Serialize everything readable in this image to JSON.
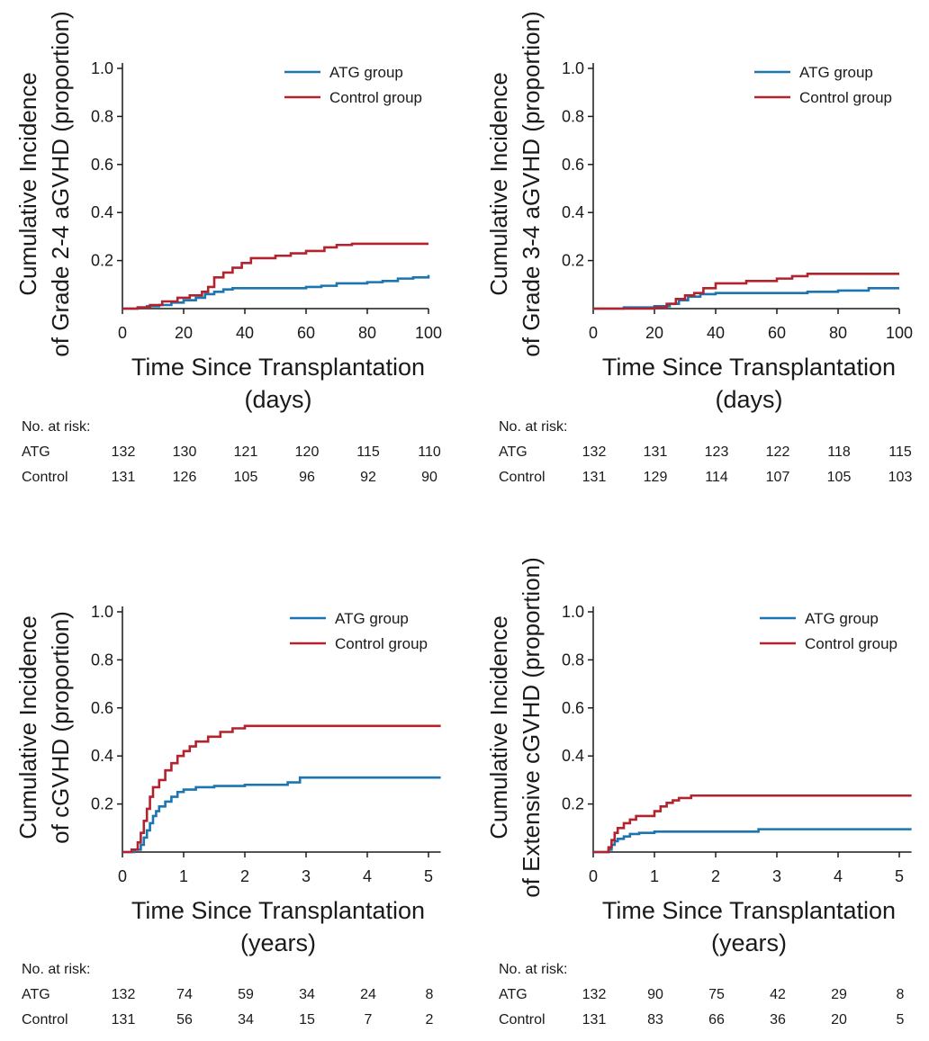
{
  "colors": {
    "atg": "#1b75b0",
    "control": "#b2232e",
    "axis": "#1a1a1a"
  },
  "chart_data": [
    {
      "type": "line",
      "step": true,
      "ylabel": [
        "Cumulative Incidence",
        "of Grade 2-4 aGVHD (proportion)"
      ],
      "xlabel": [
        "Time Since Transplantation",
        "(days)"
      ],
      "xlim": [
        0,
        100
      ],
      "ylim": [
        0,
        1.0
      ],
      "xticks": [
        0,
        20,
        40,
        60,
        80,
        100
      ],
      "xtick_labels": [
        "0",
        "20",
        "40",
        "60",
        "80",
        "100"
      ],
      "yticks": [
        0.2,
        0.4,
        0.6,
        0.8,
        1.0
      ],
      "ytick_labels": [
        "0.2",
        "0.4",
        "0.6",
        "0.8",
        "1.0"
      ],
      "legend": [
        "ATG group",
        "Control group"
      ],
      "series": [
        {
          "name": "ATG group",
          "x": [
            0,
            5,
            8,
            12,
            16,
            20,
            24,
            27,
            30,
            33,
            36,
            42,
            50,
            60,
            65,
            70,
            80,
            85,
            90,
            95,
            100
          ],
          "y": [
            0,
            0.005,
            0.01,
            0.015,
            0.025,
            0.035,
            0.045,
            0.06,
            0.07,
            0.08,
            0.085,
            0.085,
            0.085,
            0.09,
            0.095,
            0.105,
            0.11,
            0.115,
            0.125,
            0.13,
            0.14
          ]
        },
        {
          "name": "Control group",
          "x": [
            0,
            5,
            9,
            13,
            18,
            22,
            26,
            28,
            30,
            33,
            36,
            39,
            42,
            50,
            55,
            60,
            66,
            70,
            75,
            100
          ],
          "y": [
            0,
            0.005,
            0.015,
            0.03,
            0.045,
            0.055,
            0.07,
            0.09,
            0.13,
            0.15,
            0.17,
            0.19,
            0.21,
            0.22,
            0.23,
            0.24,
            0.255,
            0.265,
            0.27,
            0.27
          ]
        }
      ],
      "risk_table": {
        "header": "No. at risk:",
        "rows": [
          {
            "label": "ATG",
            "values": [
              "132",
              "130",
              "121",
              "120",
              "115",
              "110"
            ]
          },
          {
            "label": "Control",
            "values": [
              "131",
              "126",
              "105",
              "96",
              "92",
              "90"
            ]
          }
        ]
      }
    },
    {
      "type": "line",
      "step": true,
      "ylabel": [
        "Cumulative Incidence",
        "of Grade 3-4 aGVHD (proportion)"
      ],
      "xlabel": [
        "Time Since Transplantation",
        "(days)"
      ],
      "xlim": [
        0,
        100
      ],
      "ylim": [
        0,
        1.0
      ],
      "xticks": [
        0,
        20,
        40,
        60,
        80,
        100
      ],
      "xtick_labels": [
        "0",
        "20",
        "40",
        "60",
        "80",
        "100"
      ],
      "yticks": [
        0.2,
        0.4,
        0.6,
        0.8,
        1.0
      ],
      "ytick_labels": [
        "0.2",
        "0.4",
        "0.6",
        "0.8",
        "1.0"
      ],
      "legend": [
        "ATG group",
        "Control group"
      ],
      "series": [
        {
          "name": "ATG group",
          "x": [
            0,
            10,
            20,
            25,
            28,
            31,
            35,
            40,
            60,
            70,
            80,
            90,
            100
          ],
          "y": [
            0,
            0.005,
            0.01,
            0.02,
            0.035,
            0.05,
            0.06,
            0.065,
            0.065,
            0.07,
            0.075,
            0.085,
            0.085
          ]
        },
        {
          "name": "Control group",
          "x": [
            0,
            20,
            24,
            27,
            30,
            33,
            36,
            40,
            50,
            60,
            65,
            70,
            100
          ],
          "y": [
            0,
            0.005,
            0.02,
            0.04,
            0.055,
            0.065,
            0.085,
            0.105,
            0.115,
            0.125,
            0.135,
            0.145,
            0.145
          ]
        }
      ],
      "risk_table": {
        "header": "No. at risk:",
        "rows": [
          {
            "label": "ATG",
            "values": [
              "132",
              "131",
              "123",
              "122",
              "118",
              "115"
            ]
          },
          {
            "label": "Control",
            "values": [
              "131",
              "129",
              "114",
              "107",
              "105",
              "103"
            ]
          }
        ]
      }
    },
    {
      "type": "line",
      "step": true,
      "ylabel": [
        "Cumulative Incidence",
        "of cGVHD (proportion)"
      ],
      "xlabel": [
        "Time Since Transplantation",
        "(years)"
      ],
      "xlim": [
        0,
        5.2
      ],
      "ylim": [
        0,
        1.0
      ],
      "xticks": [
        0,
        1,
        2,
        3,
        4,
        5
      ],
      "xtick_labels": [
        "0",
        "1",
        "2",
        "3",
        "4",
        "5"
      ],
      "yticks": [
        0.2,
        0.4,
        0.6,
        0.8,
        1.0
      ],
      "ytick_labels": [
        "0.2",
        "0.4",
        "0.6",
        "0.8",
        "1.0"
      ],
      "legend": [
        "ATG group",
        "Control group"
      ],
      "series": [
        {
          "name": "ATG group",
          "x": [
            0,
            0.2,
            0.3,
            0.35,
            0.4,
            0.45,
            0.5,
            0.55,
            0.6,
            0.7,
            0.8,
            0.9,
            1.0,
            1.2,
            1.5,
            2.0,
            2.7,
            2.9,
            5.2
          ],
          "y": [
            0,
            0.01,
            0.03,
            0.06,
            0.09,
            0.12,
            0.15,
            0.17,
            0.19,
            0.21,
            0.23,
            0.25,
            0.26,
            0.27,
            0.275,
            0.28,
            0.29,
            0.31,
            0.31
          ]
        },
        {
          "name": "Control group",
          "x": [
            0,
            0.15,
            0.25,
            0.3,
            0.35,
            0.4,
            0.45,
            0.5,
            0.6,
            0.7,
            0.8,
            0.9,
            1.0,
            1.1,
            1.2,
            1.4,
            1.6,
            1.8,
            2.0,
            5.2
          ],
          "y": [
            0,
            0.01,
            0.04,
            0.08,
            0.13,
            0.18,
            0.23,
            0.27,
            0.3,
            0.34,
            0.37,
            0.4,
            0.42,
            0.44,
            0.46,
            0.48,
            0.5,
            0.515,
            0.525,
            0.525
          ]
        }
      ],
      "risk_table": {
        "header": "No. at risk:",
        "rows": [
          {
            "label": "ATG",
            "values": [
              "132",
              "74",
              "59",
              "34",
              "24",
              "8"
            ]
          },
          {
            "label": "Control",
            "values": [
              "131",
              "56",
              "34",
              "15",
              "7",
              "2"
            ]
          }
        ]
      }
    },
    {
      "type": "line",
      "step": true,
      "ylabel": [
        "Cumulative Incidence",
        "of Extensive cGVHD (proportion)"
      ],
      "xlabel": [
        "Time Since Transplantation",
        "(years)"
      ],
      "xlim": [
        0,
        5.2
      ],
      "ylim": [
        0,
        1.0
      ],
      "xticks": [
        0,
        1,
        2,
        3,
        4,
        5
      ],
      "xtick_labels": [
        "0",
        "1",
        "2",
        "3",
        "4",
        "5"
      ],
      "yticks": [
        0.2,
        0.4,
        0.6,
        0.8,
        1.0
      ],
      "ytick_labels": [
        "0.2",
        "0.4",
        "0.6",
        "0.8",
        "1.0"
      ],
      "legend": [
        "ATG group",
        "Control group"
      ],
      "series": [
        {
          "name": "ATG group",
          "x": [
            0,
            0.25,
            0.3,
            0.35,
            0.4,
            0.5,
            0.6,
            0.75,
            1.0,
            1.5,
            2.0,
            2.7,
            5.2
          ],
          "y": [
            0,
            0.01,
            0.03,
            0.045,
            0.055,
            0.065,
            0.075,
            0.08,
            0.085,
            0.085,
            0.085,
            0.095,
            0.095
          ]
        },
        {
          "name": "Control group",
          "x": [
            0,
            0.25,
            0.3,
            0.35,
            0.4,
            0.5,
            0.6,
            0.7,
            1.0,
            1.1,
            1.2,
            1.3,
            1.4,
            1.6,
            5.2
          ],
          "y": [
            0,
            0.02,
            0.05,
            0.08,
            0.1,
            0.12,
            0.135,
            0.15,
            0.17,
            0.19,
            0.205,
            0.215,
            0.225,
            0.235,
            0.235
          ]
        }
      ],
      "risk_table": {
        "header": "No. at risk:",
        "rows": [
          {
            "label": "ATG",
            "values": [
              "132",
              "90",
              "75",
              "42",
              "29",
              "8"
            ]
          },
          {
            "label": "Control",
            "values": [
              "131",
              "83",
              "66",
              "36",
              "20",
              "5"
            ]
          }
        ]
      }
    }
  ]
}
